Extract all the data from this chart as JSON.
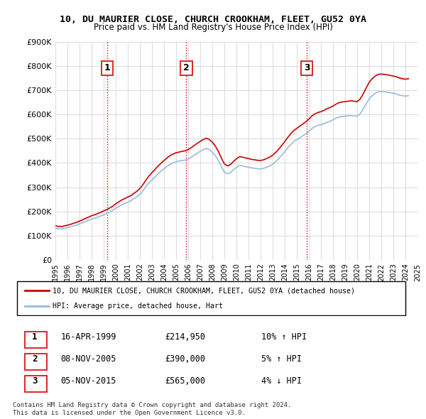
{
  "title": "10, DU MAURIER CLOSE, CHURCH CROOKHAM, FLEET, GU52 0YA",
  "subtitle": "Price paid vs. HM Land Registry's House Price Index (HPI)",
  "ylabel": "",
  "ylim": [
    0,
    900000
  ],
  "yticks": [
    0,
    100000,
    200000,
    300000,
    400000,
    500000,
    600000,
    700000,
    800000,
    900000
  ],
  "ytick_labels": [
    "£0",
    "£100K",
    "£200K",
    "£300K",
    "£400K",
    "£500K",
    "£600K",
    "£700K",
    "£800K",
    "£900K"
  ],
  "sale_color": "#cc0000",
  "hpi_color": "#99bbdd",
  "vline_color": "#dd0000",
  "vline_style": ":",
  "background_color": "#ffffff",
  "grid_color": "#dddddd",
  "legend_entry1": "10, DU MAURIER CLOSE, CHURCH CROOKHAM, FLEET, GU52 0YA (detached house)",
  "legend_entry2": "HPI: Average price, detached house, Hart",
  "sale1_date": 1999.29,
  "sale1_price": 214950,
  "sale1_label": "1",
  "sale2_date": 2005.85,
  "sale2_price": 390000,
  "sale2_label": "2",
  "sale3_date": 2015.84,
  "sale3_price": 565000,
  "sale3_label": "3",
  "table_rows": [
    [
      "1",
      "16-APR-1999",
      "£214,950",
      "10% ↑ HPI"
    ],
    [
      "2",
      "08-NOV-2005",
      "£390,000",
      "5% ↑ HPI"
    ],
    [
      "3",
      "05-NOV-2015",
      "£565,000",
      "4% ↓ HPI"
    ]
  ],
  "footer": "Contains HM Land Registry data © Crown copyright and database right 2024.\nThis data is licensed under the Open Government Licence v3.0.",
  "hpi_data": {
    "years": [
      1995.0,
      1995.25,
      1995.5,
      1995.75,
      1996.0,
      1996.25,
      1996.5,
      1996.75,
      1997.0,
      1997.25,
      1997.5,
      1997.75,
      1998.0,
      1998.25,
      1998.5,
      1998.75,
      1999.0,
      1999.25,
      1999.5,
      1999.75,
      2000.0,
      2000.25,
      2000.5,
      2000.75,
      2001.0,
      2001.25,
      2001.5,
      2001.75,
      2002.0,
      2002.25,
      2002.5,
      2002.75,
      2003.0,
      2003.25,
      2003.5,
      2003.75,
      2004.0,
      2004.25,
      2004.5,
      2004.75,
      2005.0,
      2005.25,
      2005.5,
      2005.75,
      2006.0,
      2006.25,
      2006.5,
      2006.75,
      2007.0,
      2007.25,
      2007.5,
      2007.75,
      2008.0,
      2008.25,
      2008.5,
      2008.75,
      2009.0,
      2009.25,
      2009.5,
      2009.75,
      2010.0,
      2010.25,
      2010.5,
      2010.75,
      2011.0,
      2011.25,
      2011.5,
      2011.75,
      2012.0,
      2012.25,
      2012.5,
      2012.75,
      2013.0,
      2013.25,
      2013.5,
      2013.75,
      2014.0,
      2014.25,
      2014.5,
      2014.75,
      2015.0,
      2015.25,
      2015.5,
      2015.75,
      2016.0,
      2016.25,
      2016.5,
      2016.75,
      2017.0,
      2017.25,
      2017.5,
      2017.75,
      2018.0,
      2018.25,
      2018.5,
      2018.75,
      2019.0,
      2019.25,
      2019.5,
      2019.75,
      2020.0,
      2020.25,
      2020.5,
      2020.75,
      2021.0,
      2021.25,
      2021.5,
      2021.75,
      2022.0,
      2022.25,
      2022.5,
      2022.75,
      2023.0,
      2023.25,
      2023.5,
      2023.75,
      2024.0,
      2024.25
    ],
    "values": [
      130000,
      128000,
      127000,
      130000,
      133000,
      136000,
      140000,
      143000,
      148000,
      153000,
      158000,
      163000,
      168000,
      172000,
      176000,
      181000,
      186000,
      191000,
      197000,
      204000,
      213000,
      220000,
      227000,
      233000,
      238000,
      244000,
      252000,
      260000,
      270000,
      285000,
      302000,
      318000,
      330000,
      342000,
      355000,
      366000,
      376000,
      386000,
      394000,
      400000,
      405000,
      408000,
      410000,
      412000,
      416000,
      424000,
      432000,
      440000,
      448000,
      455000,
      460000,
      455000,
      445000,
      430000,
      410000,
      385000,
      362000,
      355000,
      360000,
      372000,
      382000,
      390000,
      388000,
      385000,
      382000,
      380000,
      378000,
      376000,
      375000,
      378000,
      382000,
      388000,
      395000,
      405000,
      418000,
      432000,
      446000,
      462000,
      476000,
      488000,
      496000,
      504000,
      512000,
      520000,
      530000,
      542000,
      550000,
      555000,
      558000,
      562000,
      568000,
      572000,
      578000,
      585000,
      590000,
      592000,
      593000,
      595000,
      596000,
      594000,
      593000,
      603000,
      622000,
      645000,
      665000,
      678000,
      688000,
      694000,
      695000,
      694000,
      692000,
      690000,
      688000,
      685000,
      680000,
      678000,
      676000,
      678000
    ]
  },
  "sale_line_data": {
    "years": [
      1995.0,
      1995.25,
      1995.5,
      1995.75,
      1996.0,
      1996.25,
      1996.5,
      1996.75,
      1997.0,
      1997.25,
      1997.5,
      1997.75,
      1998.0,
      1998.25,
      1998.5,
      1998.75,
      1999.0,
      1999.25,
      1999.5,
      1999.75,
      2000.0,
      2000.25,
      2000.5,
      2000.75,
      2001.0,
      2001.25,
      2001.5,
      2001.75,
      2002.0,
      2002.25,
      2002.5,
      2002.75,
      2003.0,
      2003.25,
      2003.5,
      2003.75,
      2004.0,
      2004.25,
      2004.5,
      2004.75,
      2005.0,
      2005.25,
      2005.5,
      2005.75,
      2006.0,
      2006.25,
      2006.5,
      2006.75,
      2007.0,
      2007.25,
      2007.5,
      2007.75,
      2008.0,
      2008.25,
      2008.5,
      2008.75,
      2009.0,
      2009.25,
      2009.5,
      2009.75,
      2010.0,
      2010.25,
      2010.5,
      2010.75,
      2011.0,
      2011.25,
      2011.5,
      2011.75,
      2012.0,
      2012.25,
      2012.5,
      2012.75,
      2013.0,
      2013.25,
      2013.5,
      2013.75,
      2014.0,
      2014.25,
      2014.5,
      2014.75,
      2015.0,
      2015.25,
      2015.5,
      2015.75,
      2016.0,
      2016.25,
      2016.5,
      2016.75,
      2017.0,
      2017.25,
      2017.5,
      2017.75,
      2018.0,
      2018.25,
      2018.5,
      2018.75,
      2019.0,
      2019.25,
      2019.5,
      2019.75,
      2020.0,
      2020.25,
      2020.5,
      2020.75,
      2021.0,
      2021.25,
      2021.5,
      2021.75,
      2022.0,
      2022.25,
      2022.5,
      2022.75,
      2023.0,
      2023.25,
      2023.5,
      2023.75,
      2024.0,
      2024.25
    ],
    "values": [
      140000,
      138000,
      137000,
      140000,
      143000,
      146000,
      151000,
      154000,
      160000,
      165000,
      171000,
      176000,
      182000,
      186000,
      191000,
      196000,
      202000,
      207000,
      214000,
      221000,
      231000,
      239000,
      247000,
      253000,
      259000,
      265000,
      274000,
      283000,
      294000,
      310000,
      329000,
      346000,
      360000,
      373000,
      387000,
      399000,
      410000,
      421000,
      430000,
      437000,
      442000,
      445000,
      448000,
      450000,
      455000,
      463000,
      472000,
      481000,
      489000,
      497000,
      502000,
      497000,
      486000,
      470000,
      448000,
      421000,
      396000,
      388000,
      393000,
      406000,
      417000,
      426000,
      424000,
      421000,
      418000,
      415000,
      413000,
      411000,
      410000,
      413000,
      418000,
      424000,
      432000,
      443000,
      457000,
      472000,
      488000,
      505000,
      521000,
      534000,
      543000,
      552000,
      561000,
      570000,
      581000,
      594000,
      603000,
      608000,
      612000,
      617000,
      624000,
      629000,
      635000,
      643000,
      649000,
      652000,
      653000,
      655000,
      657000,
      655000,
      653000,
      664000,
      685000,
      710000,
      733000,
      748000,
      759000,
      766000,
      767000,
      766000,
      764000,
      761000,
      759000,
      756000,
      751000,
      748000,
      746000,
      748000
    ]
  }
}
